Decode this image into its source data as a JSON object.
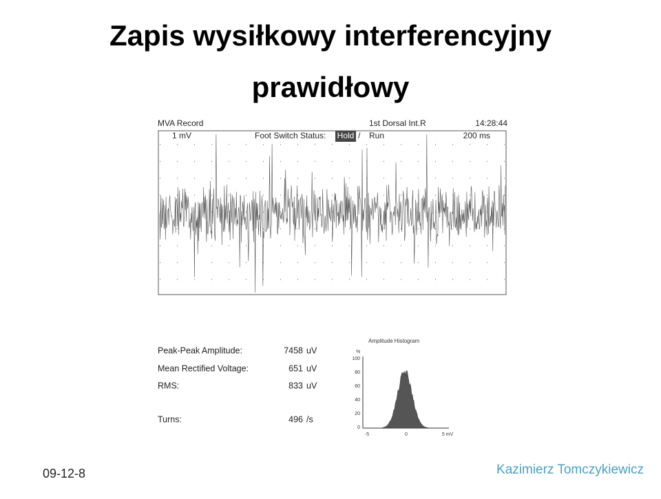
{
  "title": {
    "line1": "Zapis wysiłkowy interferencyjny",
    "line2": "prawidłowy"
  },
  "record": {
    "name": "MVA Record",
    "muscle": "1st Dorsal Int.R",
    "time": "14:28:44",
    "sensitivity": "1 mV",
    "switch_label": "Foot Switch Status:",
    "hold": "Hold",
    "slash": "/",
    "run": "Run",
    "sweep": "200 ms"
  },
  "stats": [
    {
      "label": "Peak-Peak Amplitude:",
      "value": "7458",
      "unit": "uV"
    },
    {
      "label": "Mean Rectified Voltage:",
      "value": "651",
      "unit": "uV"
    },
    {
      "label": "RMS:",
      "value": "833",
      "unit": "uV"
    },
    {
      "label": "Turns:",
      "value": "496",
      "unit": "/s"
    }
  ],
  "histogram": {
    "title": "Amplitude Histogram",
    "y_unit": "%",
    "yticks": [
      "100",
      "80",
      "60",
      "40",
      "20",
      "0"
    ],
    "xticks": [
      "-5",
      "0",
      "5 mV"
    ]
  },
  "footer": {
    "date": "09-12-8",
    "author": "Kazimierz Tomczykiewicz"
  }
}
